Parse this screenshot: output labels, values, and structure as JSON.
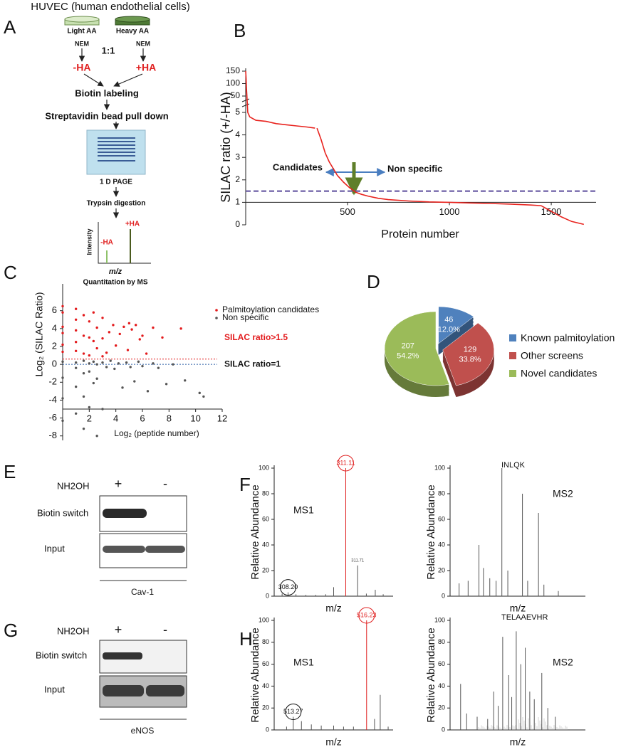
{
  "panel_labels": [
    "A",
    "B",
    "C",
    "D",
    "E",
    "F",
    "G",
    "H"
  ],
  "workflow": {
    "title": "HUVEC (human endothelial cells)",
    "light": "Light AA",
    "heavy": "Heavy AA",
    "nem_left": "NEM",
    "nem_right": "NEM",
    "ratio": "1:1",
    "minus": "-HA",
    "plus": "+HA",
    "step1": "Biotin labeling",
    "step2": "Streptavidin  bead pull down",
    "gel": "1 D PAGE",
    "step3": "Trypsin digestion",
    "y_label": "Intensity",
    "peak_minus": "-HA",
    "peak_plus": "+HA",
    "x_label": "m/z",
    "caption": "Quantitation by MS"
  },
  "chart_data": [
    {
      "type": "line",
      "y_label": "SILAC ratio (+/-HA)",
      "x_label": "Protein number",
      "x": [
        0,
        2,
        4,
        6,
        10,
        20,
        50,
        100,
        150,
        200,
        250,
        300,
        340,
        345,
        350,
        370,
        390,
        410,
        430,
        450,
        480,
        510,
        540,
        570,
        600,
        650,
        700,
        800,
        900,
        1000,
        1100,
        1200,
        1300,
        1400,
        1450,
        1500,
        1550,
        1600,
        1660
      ],
      "series": [
        {
          "color": "#e8231e",
          "values": [
            150,
            120,
            80,
            50,
            5,
            4.8,
            4.65,
            4.6,
            4.5,
            4.45,
            4.4,
            4.35,
            4.3,
            null,
            4.3,
            3.8,
            3.2,
            2.8,
            2.5,
            2.2,
            1.9,
            1.65,
            1.45,
            1.35,
            1.28,
            1.18,
            1.12,
            1.06,
            1.02,
            1.0,
            0.97,
            0.95,
            0.92,
            0.88,
            0.85,
            0.6,
            0.35,
            0.15,
            0.02
          ]
        }
      ],
      "xlim": [
        0,
        1720
      ],
      "ylim": [
        0,
        150
      ],
      "y_break": [
        5,
        50
      ],
      "x_axis_at": 1,
      "xticks": [
        500,
        1000,
        1500
      ],
      "yticks": [
        0,
        1,
        2,
        3,
        4,
        5,
        50,
        100,
        150
      ],
      "threshold": 1.5,
      "threshold_color": "#5b4b9a",
      "annotations": [
        "Candidates",
        "Non specific"
      ]
    },
    {
      "type": "scatter",
      "y_label": "Log₂ (SILAC Ratio)",
      "x_label": "Log₂ (peptide number)",
      "series": [
        {
          "name": "Palmitoylation candidates",
          "color": "#e31a1c",
          "x": [
            0,
            0,
            0,
            0,
            0,
            0,
            1,
            1,
            1,
            1,
            1,
            1.58,
            1.58,
            1.58,
            2,
            2,
            2,
            2.32,
            2.32,
            2.58,
            2.58,
            3,
            3,
            3,
            3.5,
            3.8,
            4,
            4.3,
            4.6,
            4.9,
            5,
            5.2,
            5.5,
            5.8,
            6,
            6.3,
            6.8,
            7.5,
            8.9,
            3.3
          ],
          "values": [
            6.5,
            5.8,
            4.2,
            3.5,
            2.2,
            1.4,
            6.2,
            5.0,
            3.8,
            2.5,
            1.5,
            5.5,
            3.2,
            1.2,
            4.8,
            3.0,
            1.0,
            5.8,
            2.6,
            4.1,
            1.8,
            5.2,
            2.9,
            0.9,
            3.6,
            4.4,
            2.1,
            3.4,
            4.2,
            1.6,
            4.6,
            3.9,
            4.4,
            2.8,
            3.2,
            1.2,
            4.1,
            3.0,
            4.0,
            1.3
          ]
        },
        {
          "name": "Non specific",
          "color": "#555555",
          "x": [
            0,
            0,
            0,
            0,
            1,
            1,
            1,
            1,
            1.58,
            1.58,
            1.58,
            2,
            2,
            2,
            2.32,
            2.32,
            2.58,
            2.58,
            3,
            3,
            3.3,
            3.6,
            3.9,
            4.2,
            4.5,
            4.8,
            5.1,
            5.4,
            5.7,
            6,
            6.4,
            6.8,
            7.2,
            7.8,
            8.3,
            9.2,
            10.3,
            10.6,
            2.58,
            1.58
          ],
          "values": [
            0.3,
            -1.5,
            -3.8,
            -6.3,
            0.2,
            -0.4,
            -2.5,
            -5.5,
            0.4,
            -1.0,
            -3.6,
            0.1,
            -0.8,
            -4.8,
            0.3,
            -2.1,
            0.0,
            -1.6,
            0.2,
            -5.0,
            -0.3,
            0.4,
            -0.5,
            0.1,
            -2.6,
            0.2,
            -0.3,
            -1.9,
            0.3,
            -0.2,
            -3.0,
            0.1,
            -0.4,
            -2.2,
            0.0,
            -1.8,
            -3.2,
            -3.6,
            -8.0,
            -7.2
          ]
        }
      ],
      "reference_lines": [
        {
          "value": 0.585,
          "label": "SILAC ratio>1.5",
          "color": "#e31a1c"
        },
        {
          "value": 0,
          "label": "SILAC ratio=1",
          "color": "#2c5fa8"
        }
      ],
      "xlim": [
        0,
        12
      ],
      "ylim": [
        -8.5,
        9
      ],
      "x_axis_at": -5,
      "xticks": [
        2,
        4,
        6,
        8,
        10,
        12
      ],
      "yticks": [
        -8,
        -6,
        -4,
        -2,
        0,
        2,
        4,
        6
      ]
    },
    {
      "type": "pie",
      "categories": [
        "Known palmitoylation",
        "Other screens",
        "Novel candidates"
      ],
      "values": [
        46,
        129,
        207
      ],
      "percent_labels": [
        "12.0%",
        "33.8%",
        "54.2%"
      ],
      "colors": [
        "#4f81bd",
        "#c0504d",
        "#9bbb59"
      ],
      "exploded": [
        true,
        true,
        false
      ]
    },
    {
      "type": "spectrum",
      "label": "MS1",
      "x_label": "m/z",
      "y_label": "Relative Abundance",
      "x": [
        307.9,
        308.2,
        308.6,
        309.1,
        309.6,
        310.1,
        310.5,
        311.11,
        311.71,
        312.15,
        312.6,
        313.0
      ],
      "values": [
        2,
        3,
        1.5,
        1,
        1,
        1.5,
        7,
        100,
        24,
        2,
        5,
        1.5
      ],
      "peak_labels": [
        null,
        "308.20",
        null,
        null,
        null,
        null,
        null,
        "311.11",
        "311.71",
        null,
        null,
        null
      ],
      "circles": [
        null,
        "#111111",
        null,
        null,
        null,
        null,
        null,
        "#e02020",
        null,
        null,
        null,
        null
      ],
      "xlim": [
        307.5,
        313.5
      ],
      "ylim": [
        0,
        100
      ],
      "yticks": [
        0,
        20,
        40,
        60,
        80,
        100
      ]
    },
    {
      "type": "spectrum",
      "label": "MS2",
      "peptide": "INLQK",
      "x_label": "m/z",
      "y_label": "Relative Abundance",
      "x": [
        150,
        200,
        260,
        285,
        320,
        355,
        387,
        420,
        501,
        530,
        590,
        620,
        700
      ],
      "values": [
        10,
        12,
        40,
        22,
        14,
        12,
        100,
        20,
        80,
        12,
        65,
        9,
        4
      ],
      "xlim": [
        100,
        850
      ],
      "ylim": [
        0,
        100
      ],
      "yticks": [
        0,
        20,
        40,
        60,
        80,
        100
      ]
    },
    {
      "type": "spectrum",
      "label": "MS1",
      "x_label": "m/z",
      "y_label": "Relative Abundance",
      "x": [
        513.0,
        513.27,
        513.6,
        514.0,
        514.4,
        514.9,
        515.3,
        515.7,
        516.23,
        516.55,
        516.78,
        517.1
      ],
      "values": [
        3,
        12,
        8,
        5,
        4,
        4,
        3,
        3,
        100,
        10,
        32,
        3
      ],
      "peak_labels": [
        null,
        "513.27",
        null,
        null,
        null,
        null,
        null,
        null,
        "516.23",
        null,
        null,
        null
      ],
      "circles": [
        null,
        "#111111",
        null,
        null,
        null,
        null,
        null,
        null,
        "#e02020",
        null,
        null,
        null
      ],
      "xlim": [
        512.5,
        517.3
      ],
      "ylim": [
        0,
        100
      ],
      "yticks": [
        0,
        20,
        40,
        60,
        80,
        100
      ]
    },
    {
      "type": "spectrum",
      "label": "MS2",
      "peptide": "TELAAEVHR",
      "x_label": "m/z",
      "y_label": "Relative Abundance",
      "x": [
        220,
        260,
        330,
        400,
        440,
        470,
        500,
        540,
        560,
        590,
        620,
        650,
        680,
        710,
        760,
        800,
        850
      ],
      "values": [
        42,
        15,
        12,
        10,
        35,
        22,
        85,
        50,
        30,
        90,
        60,
        75,
        35,
        28,
        52,
        20,
        12
      ],
      "xlim": [
        150,
        1050
      ],
      "ylim": [
        0,
        100
      ],
      "yticks": [
        0,
        20,
        40,
        60,
        80,
        100
      ]
    }
  ],
  "blot_e": {
    "treatment": "NH2OH",
    "plus": "+",
    "minus": "-",
    "row1": "Biotin switch",
    "row2": "Input",
    "protein": "Cav-1"
  },
  "blot_g": {
    "treatment": "NH2OH",
    "plus": "+",
    "minus": "-",
    "row1": "Biotin switch",
    "row2": "Input",
    "protein": "eNOS"
  }
}
